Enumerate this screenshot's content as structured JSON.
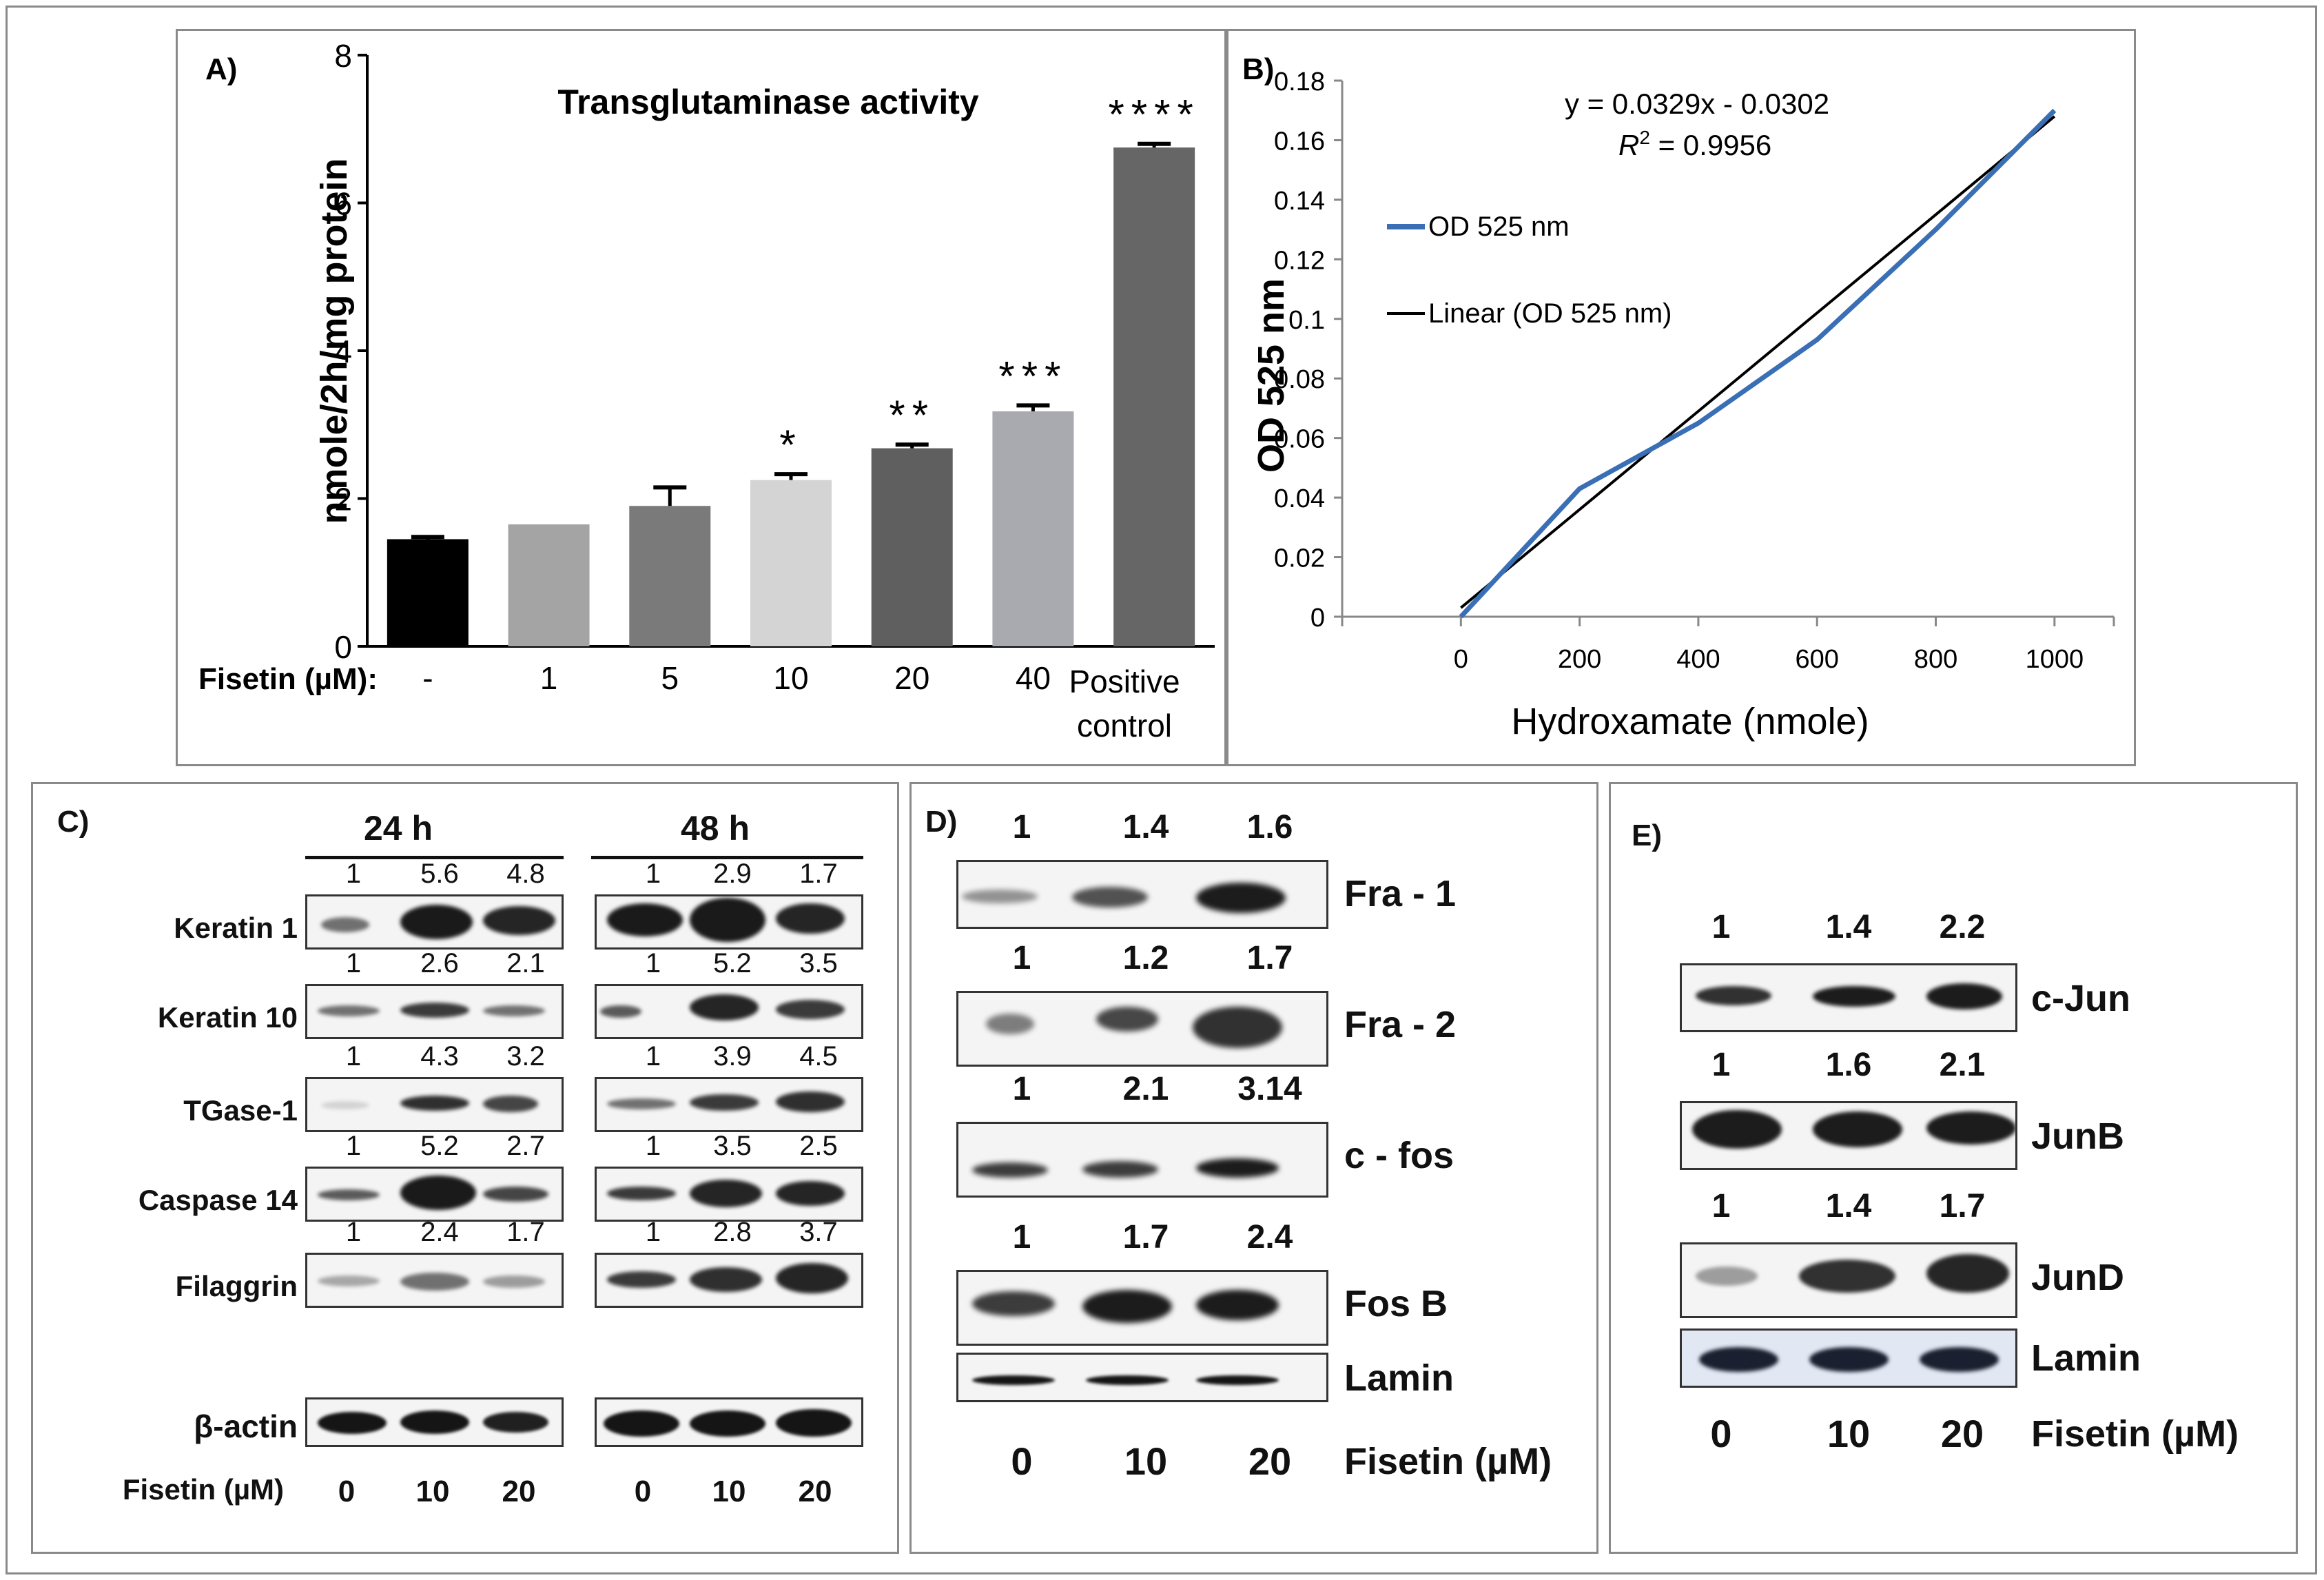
{
  "panel_a": {
    "label": "A)",
    "title": "Transglutaminase activity",
    "ylabel": "nmole/2h/mg protein",
    "xlabel": "Fisetin (µM):",
    "pos_ctrl_line1": "Positive",
    "pos_ctrl_line2": "control"
  },
  "panel_b": {
    "label": "B)",
    "equation": "y = 0.0329x - 0.0302",
    "r2_label": "R",
    "r2_sup": "2",
    "r2_value": " = 0.9956",
    "legend_od": "OD 525 nm",
    "legend_linear": "Linear (OD 525 nm)",
    "xlabel": "Hydroxamate (nmole)",
    "ylabel": "OD 525 nm"
  },
  "chart_data": [
    {
      "type": "bar",
      "title": "Transglutaminase activity",
      "xlabel": "Fisetin (µM):",
      "ylabel": "nmole/2h/mg protein",
      "categories": [
        "-",
        "1",
        "5",
        "10",
        "20",
        "40",
        "Positive control"
      ],
      "values": [
        1.45,
        1.65,
        1.9,
        2.25,
        2.68,
        3.18,
        6.75
      ],
      "errors": [
        0.03,
        0.0,
        0.25,
        0.08,
        0.05,
        0.08,
        0.05
      ],
      "significance": [
        "",
        "",
        "",
        "*",
        "**",
        "***",
        "****"
      ],
      "colors": [
        "#000000",
        "#a4a4a4",
        "#7a7a7a",
        "#d4d4d4",
        "#5f5f5f",
        "#a9a9b0",
        "#666666"
      ],
      "ylim": [
        0,
        8
      ],
      "yticks": [
        0,
        2,
        4,
        6,
        8
      ]
    },
    {
      "type": "line",
      "title": "",
      "xlabel": "Hydroxamate (nmole)",
      "ylabel": "OD 525 nm",
      "series": [
        {
          "name": "OD 525 nm",
          "color": "#3a6fb5",
          "x": [
            0,
            200,
            400,
            600,
            800,
            1000
          ],
          "y": [
            0.0,
            0.043,
            0.065,
            0.093,
            0.13,
            0.17
          ]
        },
        {
          "name": "Linear (OD 525 nm)",
          "color": "#000000",
          "x": [
            0,
            1000
          ],
          "y": [
            0.003,
            0.168
          ]
        }
      ],
      "xlim": [
        -200,
        1100
      ],
      "ylim": [
        0,
        0.18
      ],
      "xticks": [
        0,
        200,
        400,
        600,
        800,
        1000
      ],
      "yticks": [
        "0",
        "0.02",
        "0.04",
        "0.06",
        "0.08",
        "0.1",
        "0.12",
        "0.14",
        "0.16",
        "0.18"
      ],
      "annotation": "y = 0.0329x - 0.0302 R2 = 0.9956"
    }
  ],
  "panel_c": {
    "label": "C)",
    "time1": "24 h",
    "time2": "48 h",
    "rows": [
      {
        "name": "Keratin 1",
        "v24": [
          "1",
          "5.6",
          "4.8"
        ],
        "v48": [
          "1",
          "2.9",
          "1.7"
        ]
      },
      {
        "name": "Keratin 10",
        "v24": [
          "1",
          "2.6",
          "2.1"
        ],
        "v48": [
          "1",
          "5.2",
          "3.5"
        ]
      },
      {
        "name": "TGase-1",
        "v24": [
          "1",
          "4.3",
          "3.2"
        ],
        "v48": [
          "1",
          "3.9",
          "4.5"
        ]
      },
      {
        "name": "Caspase 14",
        "v24": [
          "1",
          "5.2",
          "2.7"
        ],
        "v48": [
          "1",
          "3.5",
          "2.5"
        ]
      },
      {
        "name": "Filaggrin",
        "v24": [
          "1",
          "2.4",
          "1.7"
        ],
        "v48": [
          "1",
          "2.8",
          "3.7"
        ]
      }
    ],
    "loading": "β-actin",
    "fisetin_label": "Fisetin (µM)",
    "doses": [
      "0",
      "10",
      "20"
    ]
  },
  "panel_d": {
    "label": "D)",
    "rows": [
      {
        "name": "Fra - 1",
        "vals": [
          "1",
          "1.4",
          "1.6"
        ]
      },
      {
        "name": "Fra - 2",
        "vals": [
          "1",
          "1.2",
          "1.7"
        ]
      },
      {
        "name": "c - fos",
        "vals": [
          "1",
          "2.1",
          "3.14"
        ]
      },
      {
        "name": "Fos B",
        "vals": [
          "1",
          "1.7",
          "2.4"
        ]
      }
    ],
    "loading": "Lamin",
    "fisetin_label": "Fisetin (µM)",
    "doses": [
      "0",
      "10",
      "20"
    ]
  },
  "panel_e": {
    "label": "E)",
    "rows": [
      {
        "name": "c-Jun",
        "vals": [
          "1",
          "1.4",
          "2.2"
        ]
      },
      {
        "name": "JunB",
        "vals": [
          "1",
          "1.6",
          "2.1"
        ]
      },
      {
        "name": "JunD",
        "vals": [
          "1",
          "1.4",
          "1.7"
        ]
      }
    ],
    "loading": "Lamin",
    "fisetin_label": "Fisetin (µM)",
    "doses": [
      "0",
      "10",
      "20"
    ]
  }
}
